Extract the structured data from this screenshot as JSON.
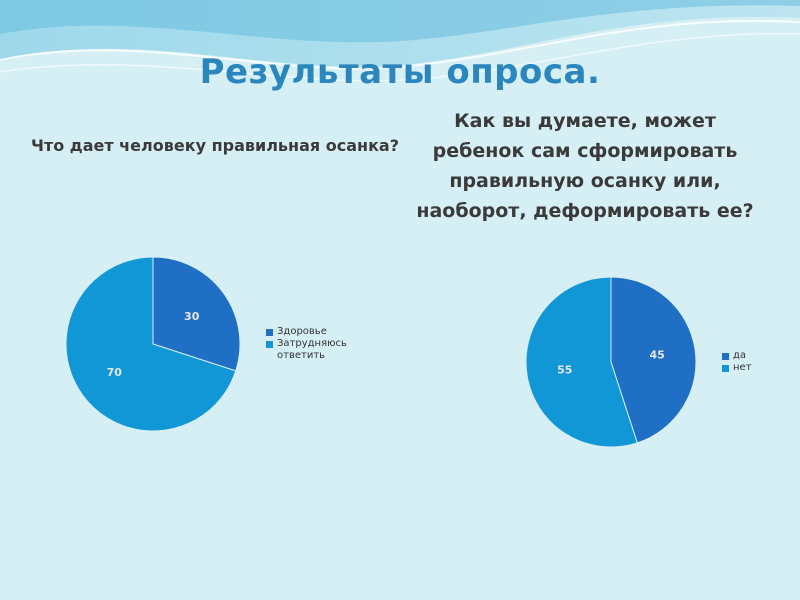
{
  "slide": {
    "title": "Результаты опроса.",
    "question_left": "Что дает человеку правильная осанка?",
    "question_right": "Как вы думаете, может ребенок сам сформировать правильную осанку или, наоборот, деформировать ее?"
  },
  "chart_data": [
    {
      "type": "pie",
      "categories": [
        "Здоровье",
        "Затрудняюсь ответить"
      ],
      "values": [
        30,
        70
      ],
      "colors": [
        "#1f6fc4",
        "#1197d6"
      ],
      "data_labels": [
        "30",
        "70"
      ],
      "legend": "right"
    },
    {
      "type": "pie",
      "categories": [
        "да",
        "нет"
      ],
      "values": [
        45,
        55
      ],
      "colors": [
        "#1f6fc4",
        "#1197d6"
      ],
      "data_labels": [
        "45",
        "55"
      ],
      "legend": "right"
    }
  ]
}
